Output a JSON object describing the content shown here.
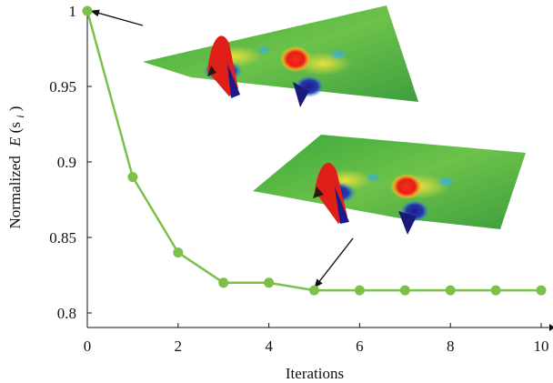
{
  "chart_data": {
    "type": "line",
    "xlabel": "Iterations",
    "ylabel_prefix": "Normalized",
    "ylabel_symbol": "E",
    "ylabel_arg": "(s",
    "ylabel_sub": "i",
    "ylabel_close": ")",
    "x": [
      0,
      1,
      2,
      3,
      4,
      5,
      6,
      7,
      8,
      9,
      10
    ],
    "y": [
      1.0,
      0.89,
      0.84,
      0.82,
      0.82,
      0.815,
      0.815,
      0.815,
      0.815,
      0.815,
      0.815
    ],
    "xlim": [
      0,
      10
    ],
    "ylim": [
      0.8,
      1.0
    ],
    "xticks": [
      "0",
      "2",
      "4",
      "6",
      "8",
      "10"
    ],
    "xtick_values": [
      0,
      2,
      4,
      6,
      8,
      10
    ],
    "yticks": [
      "0.8",
      "0.85",
      "0.9",
      "0.95",
      "1"
    ],
    "ytick_values": [
      0.8,
      0.85,
      0.9,
      0.95,
      1.0
    ],
    "series_color": "#7cc04a",
    "grid": false,
    "annotations": [
      {
        "kind": "inset-surface",
        "points_to_x": 0,
        "points_to_y": 1.0
      },
      {
        "kind": "inset-surface",
        "points_to_x": 5,
        "points_to_y": 0.815
      }
    ]
  }
}
